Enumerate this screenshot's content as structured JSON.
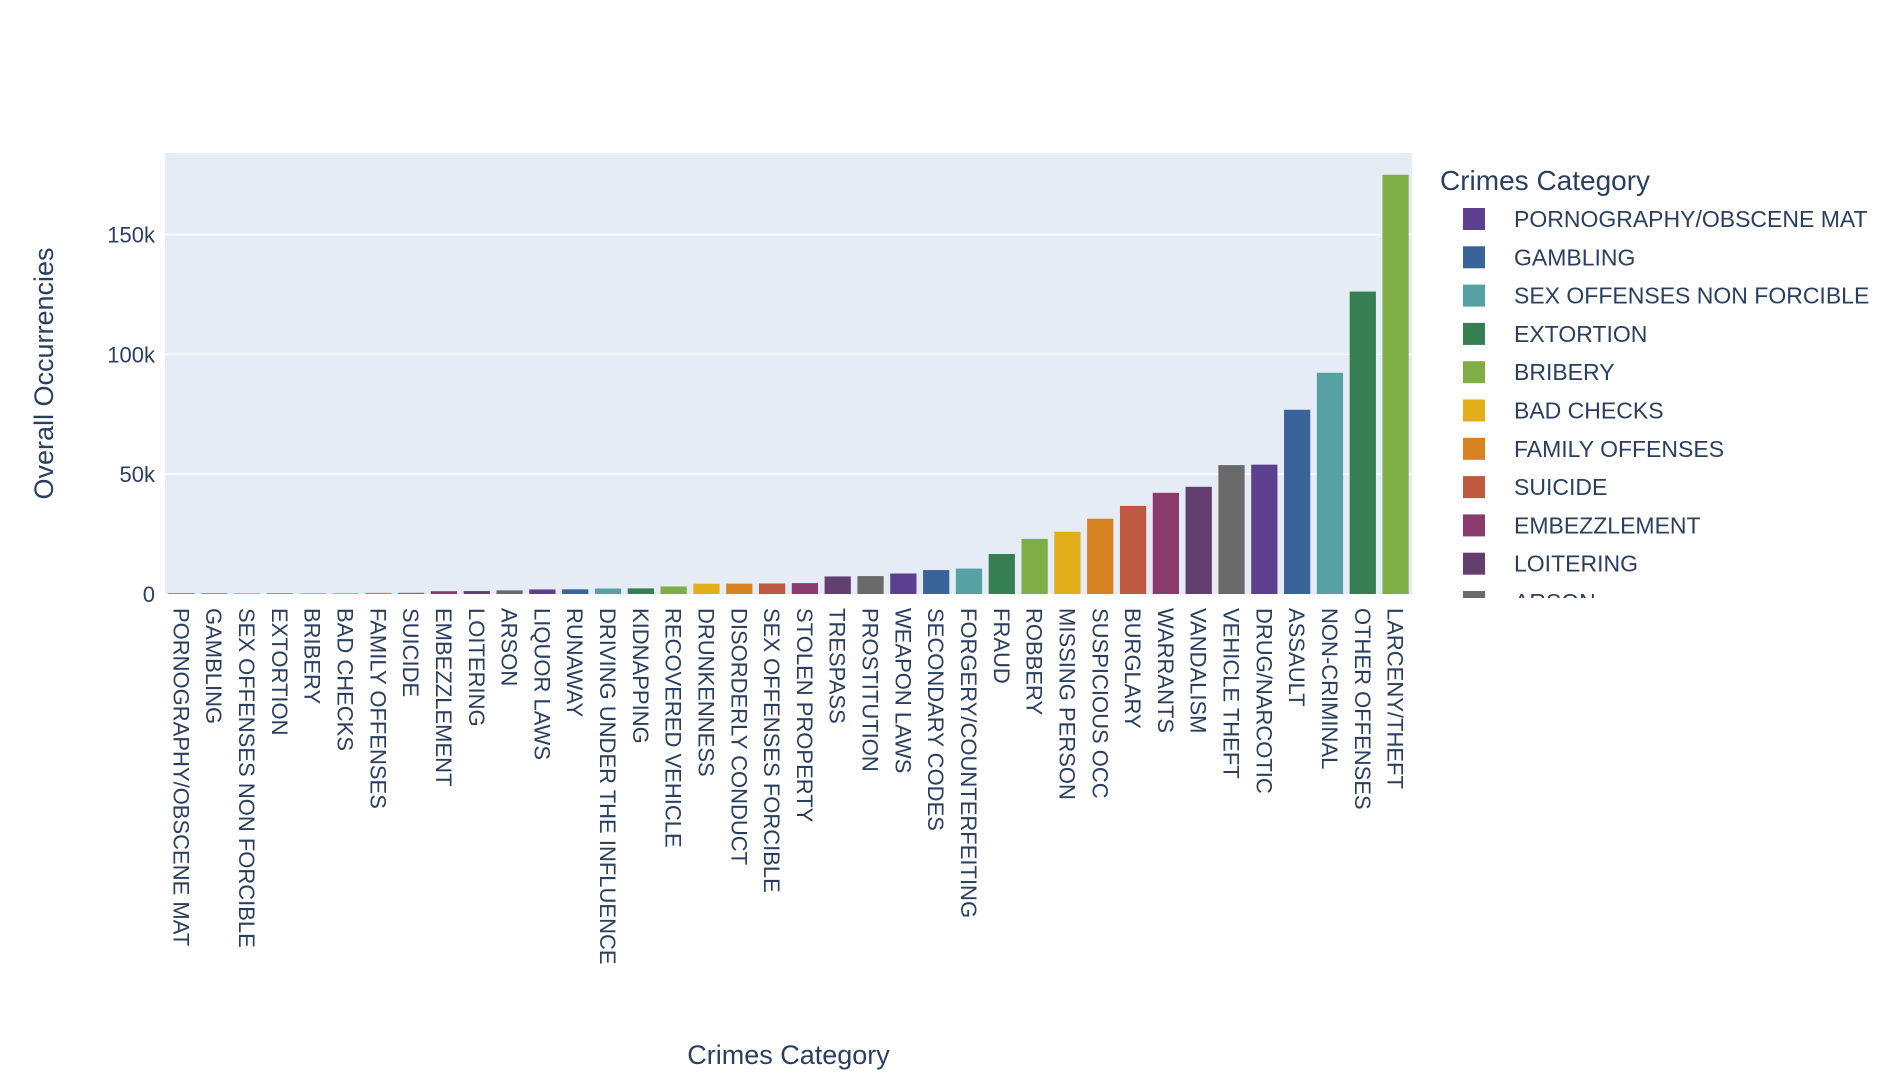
{
  "chart_data": {
    "type": "bar",
    "xlabel": "Crimes Category",
    "ylabel": "Overall Occurrencies",
    "ylim": [
      0,
      184000
    ],
    "yticks": [
      0,
      50000,
      100000,
      150000
    ],
    "ytick_labels": [
      "0",
      "50k",
      "100k",
      "150k"
    ],
    "grid": true,
    "legend_title": "Crimes Category",
    "legend_placement": "right",
    "categories": [
      "PORNOGRAPHY/OBSCENE MAT",
      "GAMBLING",
      "SEX OFFENSES NON FORCIBLE",
      "EXTORTION",
      "BRIBERY",
      "BAD CHECKS",
      "FAMILY OFFENSES",
      "SUICIDE",
      "EMBEZZLEMENT",
      "LOITERING",
      "ARSON",
      "LIQUOR LAWS",
      "RUNAWAY",
      "DRIVING UNDER THE INFLUENCE",
      "KIDNAPPING",
      "RECOVERED VEHICLE",
      "DRUNKENNESS",
      "DISORDERLY CONDUCT",
      "SEX OFFENSES FORCIBLE",
      "STOLEN PROPERTY",
      "TRESPASS",
      "PROSTITUTION",
      "WEAPON LAWS",
      "SECONDARY CODES",
      "FORGERY/COUNTERFEITING",
      "FRAUD",
      "ROBBERY",
      "MISSING PERSON",
      "SUSPICIOUS OCC",
      "BURGLARY",
      "WARRANTS",
      "VANDALISM",
      "VEHICLE THEFT",
      "DRUG/NARCOTIC",
      "ASSAULT",
      "NON-CRIMINAL",
      "OTHER OFFENSES",
      "LARCENY/THEFT"
    ],
    "values": [
      22,
      146,
      148,
      256,
      289,
      406,
      491,
      508,
      1166,
      1225,
      1513,
      1903,
      1946,
      2268,
      2341,
      3138,
      4280,
      4320,
      4388,
      4540,
      7326,
      7484,
      8555,
      9985,
      10609,
      16679,
      23000,
      25989,
      31414,
      36755,
      42214,
      44725,
      53781,
      53971,
      76876,
      92304,
      126182,
      174900
    ],
    "colors": [
      "#5D3F8F",
      "#38649A",
      "#56A1A1",
      "#367F52",
      "#7FAE46",
      "#E4AD1A",
      "#D68221",
      "#BE5840",
      "#8A3A6D",
      "#633F70",
      "#6A6A6A"
    ],
    "legend_visible_items": [
      "PORNOGRAPHY/OBSCENE MAT",
      "GAMBLING",
      "SEX OFFENSES NON FORCIBLE",
      "EXTORTION",
      "BRIBERY",
      "BAD CHECKS",
      "FAMILY OFFENSES",
      "SUICIDE",
      "EMBEZZLEMENT",
      "LOITERING",
      "ARSON"
    ]
  }
}
